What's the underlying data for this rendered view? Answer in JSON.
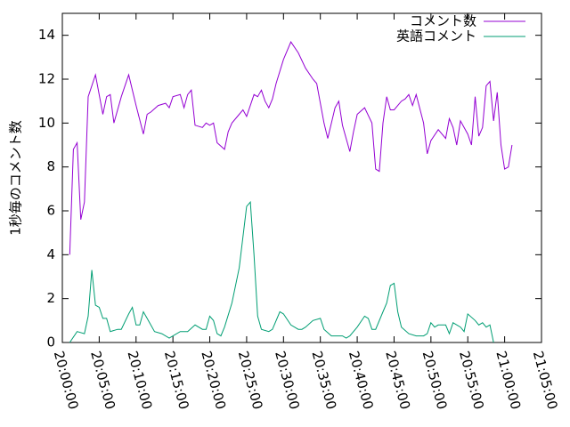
{
  "chart_data": {
    "type": "line",
    "y_label": "1秒毎のコメント数",
    "xlim": [
      "20:00:00",
      "21:05:00"
    ],
    "xticks": [
      "20:00:00",
      "20:05:00",
      "20:10:00",
      "20:15:00",
      "20:20:00",
      "20:25:00",
      "20:30:00",
      "20:35:00",
      "20:40:00",
      "20:45:00",
      "20:50:00",
      "20:55:00",
      "21:00:00",
      "21:05:00"
    ],
    "ylim": [
      0,
      15
    ],
    "yticks": [
      0,
      2,
      4,
      6,
      8,
      10,
      12,
      14
    ],
    "legend": "top-right",
    "series": [
      {
        "name": "コメント数",
        "color": "#9400d3",
        "x": [
          "20:01:00",
          "20:01:30",
          "20:02:00",
          "20:02:30",
          "20:03:00",
          "20:03:30",
          "20:04:30",
          "20:05:30",
          "20:06:00",
          "20:06:30",
          "20:07:00",
          "20:08:00",
          "20:09:00",
          "20:10:00",
          "20:11:00",
          "20:11:30",
          "20:12:00",
          "20:13:00",
          "20:14:00",
          "20:14:30",
          "20:15:00",
          "20:16:00",
          "20:16:30",
          "20:17:00",
          "20:17:30",
          "20:18:00",
          "20:19:00",
          "20:19:30",
          "20:20:00",
          "20:20:30",
          "20:21:00",
          "20:22:00",
          "20:22:30",
          "20:23:00",
          "20:24:00",
          "20:24:30",
          "20:25:00",
          "20:26:00",
          "20:26:30",
          "20:27:00",
          "20:27:30",
          "20:28:00",
          "20:28:30",
          "20:29:00",
          "20:30:00",
          "20:31:00",
          "20:32:00",
          "20:33:00",
          "20:34:00",
          "20:34:30",
          "20:35:30",
          "20:36:00",
          "20:37:00",
          "20:37:30",
          "20:38:00",
          "20:39:00",
          "20:39:30",
          "20:40:00",
          "20:41:00",
          "20:42:00",
          "20:42:30",
          "20:43:00",
          "20:43:30",
          "20:44:00",
          "20:44:30",
          "20:45:00",
          "20:46:00",
          "20:46:30",
          "20:47:00",
          "20:47:30",
          "20:48:00",
          "20:49:00",
          "20:49:30",
          "20:50:00",
          "20:51:00",
          "20:52:00",
          "20:52:30",
          "20:53:00",
          "20:53:30",
          "20:54:00",
          "20:55:00",
          "20:55:30",
          "20:56:00",
          "20:56:30",
          "20:57:00",
          "20:57:30",
          "20:58:00",
          "20:58:30",
          "20:59:00",
          "20:59:30",
          "21:00:00",
          "21:00:30",
          "21:01:00"
        ],
        "values": [
          4.0,
          8.8,
          9.1,
          5.6,
          6.4,
          11.2,
          12.2,
          10.4,
          11.2,
          11.3,
          10.0,
          11.2,
          12.2,
          10.8,
          9.5,
          10.4,
          10.5,
          10.8,
          10.9,
          10.7,
          11.2,
          11.3,
          10.7,
          11.3,
          11.5,
          9.9,
          9.8,
          10.0,
          9.9,
          10.0,
          9.1,
          8.8,
          9.6,
          10.0,
          10.4,
          10.6,
          10.3,
          11.3,
          11.2,
          11.5,
          11.0,
          10.7,
          11.1,
          11.8,
          12.9,
          13.7,
          13.2,
          12.5,
          12.0,
          11.8,
          10.0,
          9.3,
          10.7,
          11.0,
          9.9,
          8.7,
          9.6,
          10.4,
          10.7,
          10.0,
          7.9,
          7.8,
          10.0,
          11.2,
          10.6,
          10.6,
          11.0,
          11.1,
          11.3,
          10.8,
          11.3,
          10.0,
          8.6,
          9.2,
          9.7,
          9.3,
          10.2,
          9.8,
          9.0,
          10.1,
          9.5,
          9.0,
          11.2,
          9.4,
          9.8,
          11.7,
          11.9,
          10.1,
          11.4,
          9.0,
          7.9,
          8.0,
          9.0
        ]
      },
      {
        "name": "英語コメント",
        "color": "#009e73",
        "x": [
          "20:01:00",
          "20:02:00",
          "20:03:00",
          "20:03:30",
          "20:04:00",
          "20:04:30",
          "20:05:00",
          "20:05:30",
          "20:06:00",
          "20:06:30",
          "20:07:30",
          "20:08:00",
          "20:09:00",
          "20:09:30",
          "20:10:00",
          "20:10:30",
          "20:11:00",
          "20:11:30",
          "20:12:30",
          "20:13:30",
          "20:14:30",
          "20:15:00",
          "20:16:00",
          "20:17:00",
          "20:18:00",
          "20:19:00",
          "20:19:30",
          "20:20:00",
          "20:20:30",
          "20:21:00",
          "20:21:30",
          "20:22:00",
          "20:23:00",
          "20:24:00",
          "20:25:00",
          "20:25:30",
          "20:26:00",
          "20:26:30",
          "20:27:00",
          "20:28:00",
          "20:28:30",
          "20:29:30",
          "20:30:00",
          "20:31:00",
          "20:32:00",
          "20:32:30",
          "20:33:00",
          "20:34:00",
          "20:35:00",
          "20:35:30",
          "20:36:30",
          "20:37:30",
          "20:38:00",
          "20:38:30",
          "20:39:00",
          "20:40:00",
          "20:41:00",
          "20:41:30",
          "20:42:00",
          "20:42:30",
          "20:43:30",
          "20:44:00",
          "20:44:30",
          "20:45:00",
          "20:45:30",
          "20:46:00",
          "20:47:00",
          "20:48:00",
          "20:49:00",
          "20:49:30",
          "20:50:00",
          "20:50:30",
          "20:51:00",
          "20:52:00",
          "20:52:30",
          "20:53:00",
          "20:54:00",
          "20:54:30",
          "20:55:00",
          "20:56:00",
          "20:56:30",
          "20:57:00",
          "20:57:30",
          "20:58:00",
          "20:58:30"
        ],
        "values": [
          0.0,
          0.5,
          0.4,
          1.2,
          3.3,
          1.7,
          1.6,
          1.1,
          1.1,
          0.5,
          0.6,
          0.6,
          1.3,
          1.6,
          0.8,
          0.8,
          1.4,
          1.1,
          0.5,
          0.4,
          0.2,
          0.3,
          0.5,
          0.5,
          0.8,
          0.6,
          0.6,
          1.2,
          1.0,
          0.4,
          0.3,
          0.7,
          1.8,
          3.4,
          6.2,
          6.4,
          4.0,
          1.2,
          0.6,
          0.5,
          0.6,
          1.4,
          1.3,
          0.8,
          0.6,
          0.6,
          0.7,
          1.0,
          1.1,
          0.6,
          0.3,
          0.3,
          0.3,
          0.2,
          0.3,
          0.7,
          1.2,
          1.1,
          0.6,
          0.6,
          1.4,
          1.8,
          2.6,
          2.7,
          1.4,
          0.7,
          0.4,
          0.3,
          0.3,
          0.4,
          0.9,
          0.7,
          0.8,
          0.8,
          0.4,
          0.9,
          0.7,
          0.5,
          1.3,
          1.0,
          0.8,
          0.9,
          0.7,
          0.8,
          0.0
        ]
      }
    ]
  }
}
